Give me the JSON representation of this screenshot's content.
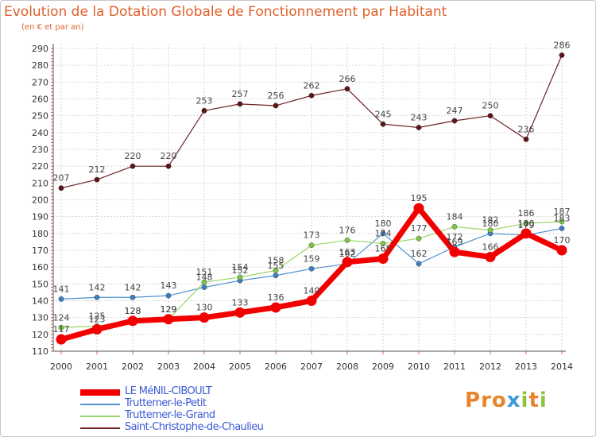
{
  "title": "Evolution de la Dotation Globale de Fonctionnement par Habitant",
  "subtitle": "(en € et par an)",
  "brand": {
    "text": "Proxiti",
    "letters": [
      {
        "ch": "P",
        "color": "#e8852a"
      },
      {
        "ch": "r",
        "color": "#e8852a"
      },
      {
        "ch": "o",
        "color": "#e8852a"
      },
      {
        "ch": "x",
        "color": "#3a9bd8"
      },
      {
        "ch": "i",
        "color": "#8cc63f"
      },
      {
        "ch": "t",
        "color": "#e8852a"
      },
      {
        "ch": "i",
        "color": "#8cc63f"
      }
    ]
  },
  "chart_data": {
    "type": "line",
    "x": [
      "2000",
      "2001",
      "2002",
      "2003",
      "2004",
      "2005",
      "2006",
      "2007",
      "2008",
      "2009",
      "2010",
      "2011",
      "2012",
      "2013",
      "2014"
    ],
    "ylim": [
      110,
      290
    ],
    "y_ticks": [
      110,
      120,
      130,
      140,
      150,
      160,
      170,
      180,
      190,
      200,
      210,
      220,
      230,
      240,
      250,
      260,
      270,
      280,
      290
    ],
    "grid": true,
    "legend_position": "bottom-left",
    "series": [
      {
        "name": "Saint-Christophe-de-Chaulieu",
        "color": "#6e1f24",
        "marker": "#5a1518",
        "width": 1.2,
        "values": [
          207,
          212,
          220,
          220,
          253,
          257,
          256,
          262,
          266,
          245,
          243,
          247,
          250,
          236,
          286
        ]
      },
      {
        "name": "Truttemer-le-Petit",
        "color": "#4f93d1",
        "marker": "#3d7fc0",
        "width": 1.2,
        "values": [
          141,
          142,
          142,
          143,
          148,
          152,
          155,
          159,
          162,
          180,
          162,
          172,
          180,
          179,
          183
        ]
      },
      {
        "name": "Truttemer-le-Grand",
        "color": "#9ad86b",
        "marker": "#7cc446",
        "width": 1.2,
        "values": [
          124,
          125,
          128,
          129,
          151,
          154,
          158,
          173,
          176,
          174,
          177,
          184,
          182,
          186,
          187
        ]
      },
      {
        "name": "LE MéNIL-CIBOULT",
        "color": "#f20000",
        "marker": "#f20000",
        "width": 7,
        "values": [
          117,
          123,
          128,
          129,
          130,
          133,
          136,
          140,
          163,
          165,
          195,
          169,
          166,
          180,
          170
        ]
      }
    ],
    "legend_order": [
      3,
      1,
      2,
      0
    ]
  }
}
